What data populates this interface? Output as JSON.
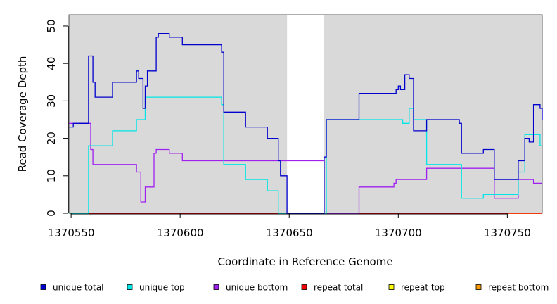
{
  "chart_data": {
    "type": "line",
    "title": "",
    "xlabel": "Coordinate in Reference Genome",
    "ylabel": "Read Coverage Depth",
    "xlim": [
      1370549,
      1370766
    ],
    "ylim": [
      0,
      53
    ],
    "x_ticks": [
      1370550,
      1370600,
      1370650,
      1370700,
      1370750
    ],
    "y_ticks": [
      0,
      10,
      20,
      30,
      40,
      50
    ],
    "x_tick_labels": [
      "1370550",
      "1370600",
      "1370650",
      "1370700",
      "1370750"
    ],
    "y_tick_labels": [
      "0",
      "10",
      "20",
      "30",
      "40",
      "50"
    ],
    "grid": false,
    "legend_position": "bottom",
    "background_color": "#d9d9d9",
    "gap_region": [
      1370649,
      1370666
    ],
    "series": [
      {
        "name": "unique total",
        "color": "#0000cc",
        "x": [
          1370549,
          1370551,
          1370558,
          1370560,
          1370561,
          1370569,
          1370580,
          1370581,
          1370583,
          1370584,
          1370585,
          1370589,
          1370590,
          1370595,
          1370601,
          1370619,
          1370620,
          1370630,
          1370640,
          1370645,
          1370646,
          1370649,
          1370666,
          1370667,
          1370682,
          1370699,
          1370700,
          1370701,
          1370703,
          1370705,
          1370707,
          1370713,
          1370728,
          1370729,
          1370739,
          1370744,
          1370755,
          1370758,
          1370760,
          1370762,
          1370765,
          1370766
        ],
        "y": [
          23,
          24,
          42,
          35,
          31,
          35,
          38,
          36,
          28,
          34,
          38,
          47,
          48,
          47,
          45,
          43,
          27,
          23,
          20,
          14,
          10,
          0,
          15,
          25,
          32,
          33,
          34,
          33,
          37,
          36,
          22,
          25,
          24,
          16,
          17,
          9,
          14,
          20,
          19,
          29,
          28,
          25
        ]
      },
      {
        "name": "unique top",
        "color": "#00e5e5",
        "x": [
          1370549,
          1370558,
          1370569,
          1370580,
          1370584,
          1370619,
          1370620,
          1370630,
          1370640,
          1370645,
          1370666,
          1370667,
          1370699,
          1370702,
          1370705,
          1370707,
          1370713,
          1370729,
          1370739,
          1370751,
          1370755,
          1370758,
          1370760,
          1370765,
          1370766
        ],
        "y": [
          0,
          18,
          22,
          25,
          31,
          29,
          13,
          9,
          6,
          0,
          0,
          25,
          25,
          24,
          28,
          25,
          13,
          4,
          5,
          5,
          11,
          21,
          21,
          18,
          18
        ]
      },
      {
        "name": "unique bottom",
        "color": "#a020f0",
        "x": [
          1370549,
          1370558,
          1370559,
          1370560,
          1370568,
          1370580,
          1370582,
          1370584,
          1370588,
          1370589,
          1370595,
          1370601,
          1370640,
          1370649,
          1370666,
          1370682,
          1370698,
          1370699,
          1370700,
          1370713,
          1370744,
          1370755,
          1370762,
          1370766
        ],
        "y": [
          24,
          24,
          17,
          13,
          13,
          11,
          3,
          7,
          16,
          17,
          16,
          14,
          14,
          14,
          0,
          7,
          8,
          9,
          9,
          12,
          4,
          9,
          8,
          8
        ]
      },
      {
        "name": "repeat total",
        "color": "#ee0000",
        "x": [
          1370549,
          1370766
        ],
        "y": [
          0,
          0
        ]
      },
      {
        "name": "repeat top",
        "color": "#ffff00",
        "x": [
          1370549,
          1370766
        ],
        "y": [
          0,
          0
        ]
      },
      {
        "name": "repeat bottom",
        "color": "#ff9900",
        "x": [
          1370549,
          1370766
        ],
        "y": [
          0,
          0
        ]
      }
    ]
  }
}
